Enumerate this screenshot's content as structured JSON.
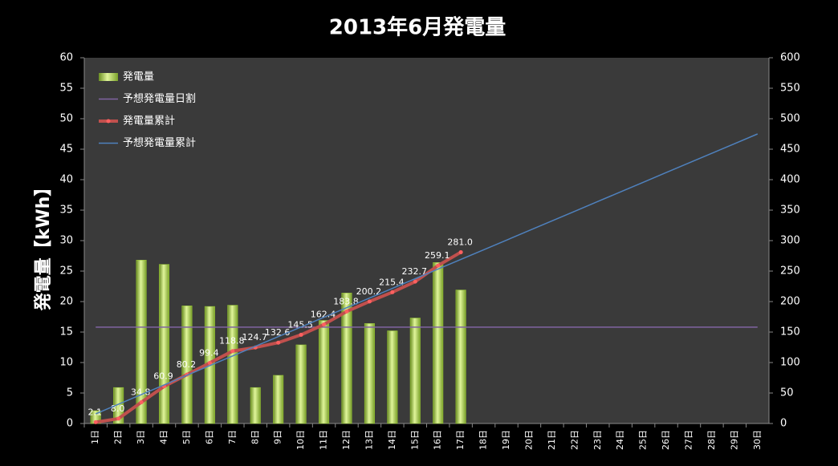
{
  "chart_data": {
    "type": "bar",
    "title": "2013年6月発電量",
    "ylabel": "発電量【kWh】",
    "categories": [
      "1日",
      "2日",
      "3日",
      "4日",
      "5日",
      "6日",
      "7日",
      "8日",
      "9日",
      "10日",
      "11日",
      "12日",
      "13日",
      "14日",
      "15日",
      "16日",
      "17日",
      "18日",
      "19日",
      "20日",
      "21日",
      "22日",
      "23日",
      "24日",
      "25日",
      "26日",
      "27日",
      "28日",
      "29日",
      "30日"
    ],
    "ylim": [
      0,
      60
    ],
    "yticks": [
      0,
      5,
      10,
      15,
      20,
      25,
      30,
      35,
      40,
      45,
      50,
      55,
      60
    ],
    "y2lim": [
      0,
      600
    ],
    "y2ticks": [
      0,
      50,
      100,
      150,
      200,
      250,
      300,
      350,
      400,
      450,
      500,
      550,
      600
    ],
    "legend": "top-left",
    "series": [
      {
        "name": "発電量",
        "type": "bar",
        "color": "#9acd32",
        "values": [
          2.1,
          5.9,
          26.8,
          26.1,
          19.3,
          19.2,
          19.4,
          5.9,
          7.9,
          12.9,
          16.9,
          21.4,
          16.4,
          15.2,
          17.3,
          26.4,
          21.9,
          null,
          null,
          null,
          null,
          null,
          null,
          null,
          null,
          null,
          null,
          null,
          null,
          null
        ]
      },
      {
        "name": "予想発電量日割",
        "type": "line",
        "color": "#8064a2",
        "values": [
          15.8,
          15.8,
          15.8,
          15.8,
          15.8,
          15.8,
          15.8,
          15.8,
          15.8,
          15.8,
          15.8,
          15.8,
          15.8,
          15.8,
          15.8,
          15.8,
          15.8,
          15.8,
          15.8,
          15.8,
          15.8,
          15.8,
          15.8,
          15.8,
          15.8,
          15.8,
          15.8,
          15.8,
          15.8,
          15.8
        ]
      },
      {
        "name": "発電量累計",
        "type": "line",
        "axis": "y2",
        "color": "#c0504d",
        "markers": true,
        "values": [
          2.1,
          8,
          34.8,
          60.9,
          80.2,
          99.4,
          118.8,
          124.7,
          132.6,
          145.5,
          162.4,
          183.8,
          200.2,
          215.4,
          232.7,
          259.1,
          281,
          null,
          null,
          null,
          null,
          null,
          null,
          null,
          null,
          null,
          null,
          null,
          null,
          null
        ],
        "value_labels": [
          "2.1",
          "8.0",
          "34.8",
          "60.9",
          "80.2",
          "99.4",
          "118.8",
          "124.7",
          "132.6",
          "145.5",
          "162.4",
          "183.8",
          "200.2",
          "215.4",
          "232.7",
          "259.1",
          "281.0",
          null,
          null,
          null,
          null,
          null,
          null,
          null,
          null,
          null,
          null,
          null,
          null,
          null
        ]
      },
      {
        "name": "予想発電量累計",
        "type": "line",
        "axis": "y2",
        "color": "#4f81bd",
        "values": [
          15.8,
          31.7,
          47.5,
          63.3,
          79.2,
          95,
          110.8,
          126.7,
          142.5,
          158.3,
          174.2,
          190,
          205.8,
          221.7,
          237.5,
          253.3,
          269.2,
          285,
          300.8,
          316.7,
          332.5,
          348.3,
          364.2,
          380,
          395.8,
          411.7,
          427.5,
          443.3,
          459.2,
          475
        ]
      }
    ]
  }
}
